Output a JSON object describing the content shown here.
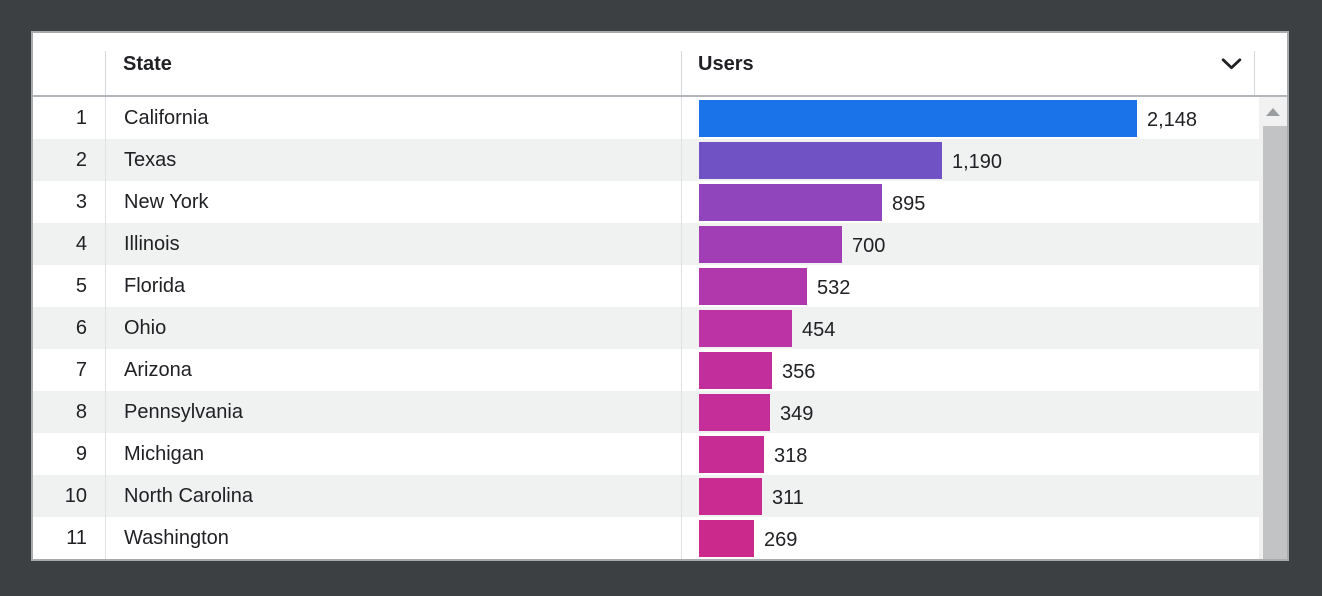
{
  "window": {
    "background_color": "#3c4043",
    "panel_border_color": "#a8abae"
  },
  "table": {
    "header": {
      "rank_label": "",
      "state_label": "State",
      "users_label": "Users",
      "sort_icon": "chevron-down"
    },
    "stripe_color": "#f0f1f1",
    "text_color": "#202124",
    "rows": [
      {
        "rank": "1",
        "state": "California",
        "users": "2,148",
        "value": 2148,
        "bar_color": "#1a73e8"
      },
      {
        "rank": "2",
        "state": "Texas",
        "users": "1,190",
        "value": 1190,
        "bar_color": "#7152c4"
      },
      {
        "rank": "3",
        "state": "New York",
        "users": "895",
        "value": 895,
        "bar_color": "#9145bc"
      },
      {
        "rank": "4",
        "state": "Illinois",
        "users": "700",
        "value": 700,
        "bar_color": "#a23eb5"
      },
      {
        "rank": "5",
        "state": "Florida",
        "users": "532",
        "value": 532,
        "bar_color": "#b038ac"
      },
      {
        "rank": "6",
        "state": "Ohio",
        "users": "454",
        "value": 454,
        "bar_color": "#bb33a4"
      },
      {
        "rank": "7",
        "state": "Arizona",
        "users": "356",
        "value": 356,
        "bar_color": "#c22f9d"
      },
      {
        "rank": "8",
        "state": "Pennsylvania",
        "users": "349",
        "value": 349,
        "bar_color": "#c52d99"
      },
      {
        "rank": "9",
        "state": "Michigan",
        "users": "318",
        "value": 318,
        "bar_color": "#c72c94"
      },
      {
        "rank": "10",
        "state": "North Carolina",
        "users": "311",
        "value": 311,
        "bar_color": "#c92b90"
      },
      {
        "rank": "11",
        "state": "Washington",
        "users": "269",
        "value": 269,
        "bar_color": "#cb2a8c"
      }
    ]
  },
  "scrollbar": {
    "has_up_arrow": true,
    "track_color": "#f1f1f1",
    "thumb_color": "#c1c3c5"
  },
  "chart_data": {
    "type": "bar",
    "orientation": "horizontal",
    "title": "",
    "xlabel": "Users",
    "ylabel": "State",
    "categories": [
      "California",
      "Texas",
      "New York",
      "Illinois",
      "Florida",
      "Ohio",
      "Arizona",
      "Pennsylvania",
      "Michigan",
      "North Carolina",
      "Washington"
    ],
    "values": [
      2148,
      1190,
      895,
      700,
      532,
      454,
      356,
      349,
      318,
      311,
      269
    ],
    "value_labels": [
      "2,148",
      "1,190",
      "895",
      "700",
      "532",
      "454",
      "356",
      "349",
      "318",
      "311",
      "269"
    ],
    "bar_colors": [
      "#1a73e8",
      "#7152c4",
      "#9145bc",
      "#a23eb5",
      "#b038ac",
      "#bb33a4",
      "#c22f9d",
      "#c52d99",
      "#c72c94",
      "#c92b90",
      "#cb2a8c"
    ],
    "xlim": [
      0,
      2148
    ],
    "legend": false,
    "gridlines": false
  }
}
